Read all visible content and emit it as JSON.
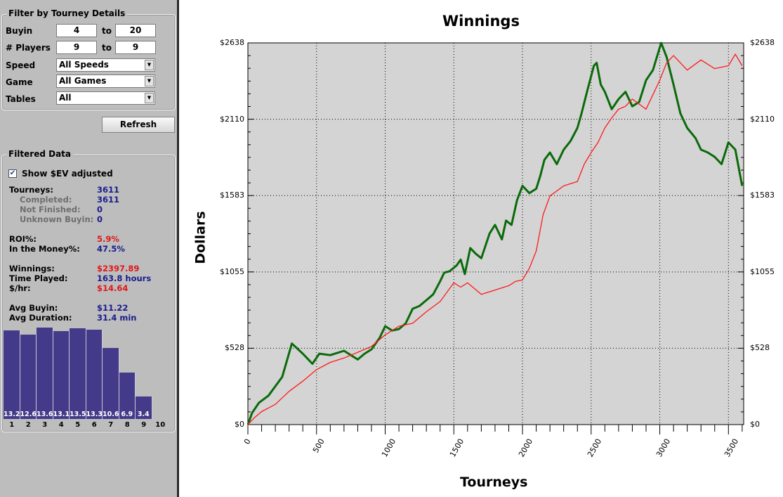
{
  "filter": {
    "title": "Filter by Tourney Details",
    "buyin_label": "Buyin",
    "buyin_from": "4",
    "buyin_to": "20",
    "players_label": "# Players",
    "players_from": "9",
    "players_to": "9",
    "to_label": "to",
    "speed_label": "Speed",
    "speed_value": "All Speeds",
    "game_label": "Game",
    "game_value": "All Games",
    "tables_label": "Tables",
    "tables_value": "All",
    "refresh_label": "Refresh"
  },
  "filtered": {
    "title": "Filtered Data",
    "ev_checkbox_label": "Show $EV adjusted",
    "ev_checked": true,
    "stats": [
      {
        "label": "Tourneys:",
        "value": "3611",
        "sub": false,
        "red": false
      },
      {
        "label": "Completed:",
        "value": "3611",
        "sub": true,
        "red": false
      },
      {
        "label": "Not Finished:",
        "value": "0",
        "sub": true,
        "red": false
      },
      {
        "label": "Unknown Buyin:",
        "value": "0",
        "sub": true,
        "red": false
      },
      {
        "label": "ROI%:",
        "value": "5.9%",
        "sub": false,
        "red": true
      },
      {
        "label": "In the Money%:",
        "value": "47.5%",
        "sub": false,
        "red": false
      },
      {
        "label": "Winnings:",
        "value": "$2397.89",
        "sub": false,
        "red": true
      },
      {
        "label": "Time Played:",
        "value": "163.8 hours",
        "sub": false,
        "red": false
      },
      {
        "label": "$/hr:",
        "value": "$14.64",
        "sub": false,
        "red": true
      },
      {
        "label": "Avg Buyin:",
        "value": "$11.22",
        "sub": false,
        "red": false
      },
      {
        "label": "Avg Duration:",
        "value": "31.4 min",
        "sub": false,
        "red": false
      }
    ],
    "histogram": {
      "labels": [
        "1",
        "2",
        "3",
        "4",
        "5",
        "6",
        "7",
        "8",
        "9",
        "10"
      ],
      "values": [
        13.2,
        12.6,
        13.6,
        13.1,
        13.5,
        13.3,
        10.6,
        6.9,
        3.4,
        null
      ],
      "value_labels": [
        "13.2",
        "12.6",
        "13.6",
        "13.1",
        "13.5",
        "13.3",
        "10.6",
        "6.9",
        "3.4",
        ""
      ],
      "color": "#433a8a"
    }
  },
  "chart_data": {
    "type": "line",
    "title": "Winnings",
    "xlabel": "Tourneys",
    "ylabel": "Dollars",
    "xlim": [
      0,
      3611
    ],
    "ylim": [
      0,
      2638
    ],
    "xticks": [
      "0",
      "500",
      "1000",
      "1500",
      "2000",
      "2500",
      "3000",
      "3500"
    ],
    "yticks": [
      "$0",
      "$528",
      "$1055",
      "$1583",
      "$2110",
      "$2638"
    ],
    "grid": true,
    "background": "#d4d4d4",
    "series": [
      {
        "color": "#0a6a0a",
        "x": [
          0,
          30,
          80,
          150,
          250,
          320,
          400,
          470,
          520,
          600,
          700,
          800,
          850,
          900,
          960,
          1000,
          1050,
          1100,
          1150,
          1200,
          1250,
          1300,
          1350,
          1400,
          1430,
          1470,
          1520,
          1550,
          1580,
          1620,
          1660,
          1700,
          1760,
          1800,
          1850,
          1880,
          1920,
          1960,
          2000,
          2050,
          2100,
          2130,
          2160,
          2200,
          2250,
          2300,
          2350,
          2400,
          2430,
          2470,
          2520,
          2540,
          2570,
          2600,
          2650,
          2700,
          2750,
          2800,
          2850,
          2900,
          2950,
          3010,
          3050,
          3100,
          3150,
          3200,
          3260,
          3300,
          3350,
          3400,
          3450,
          3500,
          3550,
          3600
        ],
        "y": [
          0,
          80,
          150,
          200,
          330,
          560,
          490,
          420,
          490,
          480,
          510,
          450,
          490,
          520,
          600,
          680,
          650,
          660,
          700,
          800,
          820,
          860,
          900,
          990,
          1050,
          1060,
          1100,
          1140,
          1040,
          1220,
          1180,
          1150,
          1320,
          1380,
          1280,
          1410,
          1380,
          1550,
          1650,
          1600,
          1630,
          1720,
          1830,
          1880,
          1800,
          1900,
          1960,
          2050,
          2150,
          2300,
          2480,
          2500,
          2350,
          2300,
          2180,
          2250,
          2300,
          2200,
          2230,
          2380,
          2450,
          2638,
          2540,
          2350,
          2150,
          2050,
          1980,
          1900,
          1880,
          1850,
          1800,
          1950,
          1900,
          1650
        ]
      },
      {
        "color": "#ff1a1a",
        "x": [
          0,
          50,
          100,
          200,
          300,
          400,
          500,
          600,
          700,
          800,
          900,
          1000,
          1100,
          1200,
          1300,
          1400,
          1500,
          1550,
          1600,
          1650,
          1700,
          1800,
          1900,
          1950,
          2000,
          2050,
          2100,
          2150,
          2200,
          2300,
          2400,
          2450,
          2500,
          2550,
          2600,
          2650,
          2700,
          2750,
          2800,
          2900,
          3000,
          3050,
          3100,
          3200,
          3300,
          3400,
          3500,
          3550,
          3600
        ],
        "y": [
          0,
          50,
          90,
          140,
          230,
          300,
          380,
          430,
          460,
          500,
          540,
          620,
          680,
          700,
          780,
          850,
          980,
          950,
          980,
          940,
          900,
          930,
          960,
          990,
          1000,
          1080,
          1200,
          1450,
          1580,
          1650,
          1680,
          1800,
          1880,
          1950,
          2050,
          2120,
          2180,
          2200,
          2250,
          2180,
          2380,
          2500,
          2550,
          2450,
          2520,
          2460,
          2480,
          2560,
          2480
        ]
      }
    ]
  }
}
